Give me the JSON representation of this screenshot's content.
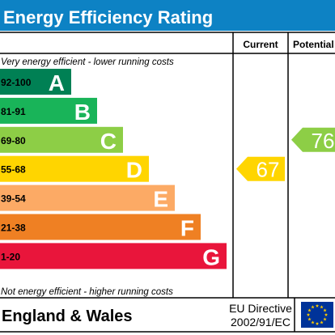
{
  "title": "Energy Efficiency Rating",
  "columns": {
    "current": "Current",
    "potential": "Potential"
  },
  "top_note": "Very energy efficient - lower running costs",
  "bottom_note": "Not energy efficient - higher running costs",
  "bands": [
    {
      "range": "92-100",
      "letter": "A",
      "color": "#008054"
    },
    {
      "range": "81-91",
      "letter": "B",
      "color": "#19b459"
    },
    {
      "range": "69-80",
      "letter": "C",
      "color": "#8dce46"
    },
    {
      "range": "55-68",
      "letter": "D",
      "color": "#ffd500"
    },
    {
      "range": "39-54",
      "letter": "E",
      "color": "#fcaa65"
    },
    {
      "range": "21-38",
      "letter": "F",
      "color": "#ef8023"
    },
    {
      "range": "1-20",
      "letter": "G",
      "color": "#e9153b"
    }
  ],
  "current_rating": {
    "value": "67",
    "band": "D",
    "color": "#ffd500"
  },
  "potential_rating": {
    "value": "76",
    "band": "C",
    "color": "#8dce46"
  },
  "footer": {
    "region": "England & Wales",
    "directive_line1": "EU Directive",
    "directive_line2": "2002/91/EC",
    "flag_icon": "eu-flag-icon"
  },
  "colors": {
    "header": "#0d82c4",
    "border": "#000000",
    "eu_blue": "#003399",
    "eu_star": "#ffcc00"
  }
}
